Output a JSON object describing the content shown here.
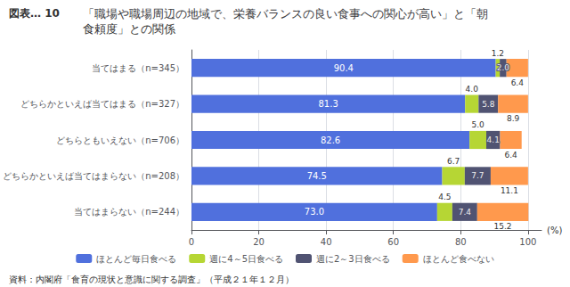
{
  "chart_data": {
    "type": "bar",
    "orientation": "horizontal",
    "stacked": true,
    "data_labels": true,
    "title": "「職場や職場周辺の地域で、栄養バランスの良い食事への関心が高い」と「朝",
    "subtitle": "食頼度」との関係",
    "annotations": [
      "図表… 10",
      "資料：内閣府「食育の現状と意識に関する調査」（平成２１年１２月）"
    ],
    "x_label": "(%)",
    "categories": [
      "当てはまる（n=345）",
      "どちらかといえば当てはまる（n=327）",
      "どちらともいえない（n=706）",
      "どちらかといえば当てはまらない（n=208）",
      "当てはまらない（n=244）"
    ],
    "series": [
      {
        "name": "ほとんど毎日食べる",
        "values": [
          90.4,
          81.3,
          82.6,
          74.5,
          73.0
        ],
        "value_labels": [
          "90.4",
          "81.3",
          "82.6",
          "74.5",
          "73.0"
        ]
      },
      {
        "name": "週に4～5日食べる",
        "values": [
          1.2,
          4.0,
          5.0,
          6.7,
          4.5
        ],
        "value_labels": [
          "1.2",
          "4.0",
          "5.0",
          "6.7",
          "4.5"
        ]
      },
      {
        "name": "週に2～3日食べる",
        "values": [
          2.0,
          5.8,
          4.1,
          7.7,
          7.4
        ],
        "value_labels": [
          "2.0",
          "5.8",
          "4.1",
          "7.7",
          "7.4"
        ]
      },
      {
        "name": "ほとんど食べない",
        "values": [
          6.4,
          8.9,
          6.4,
          11.1,
          15.2
        ],
        "value_labels": [
          "6.4",
          "8.9",
          "6.4",
          "11.1",
          "15.2"
        ]
      }
    ],
    "xlim": [
      0,
      104
    ],
    "xticks": [
      0,
      20,
      40,
      60,
      80,
      100
    ],
    "grid": true,
    "legend": "bottom"
  }
}
